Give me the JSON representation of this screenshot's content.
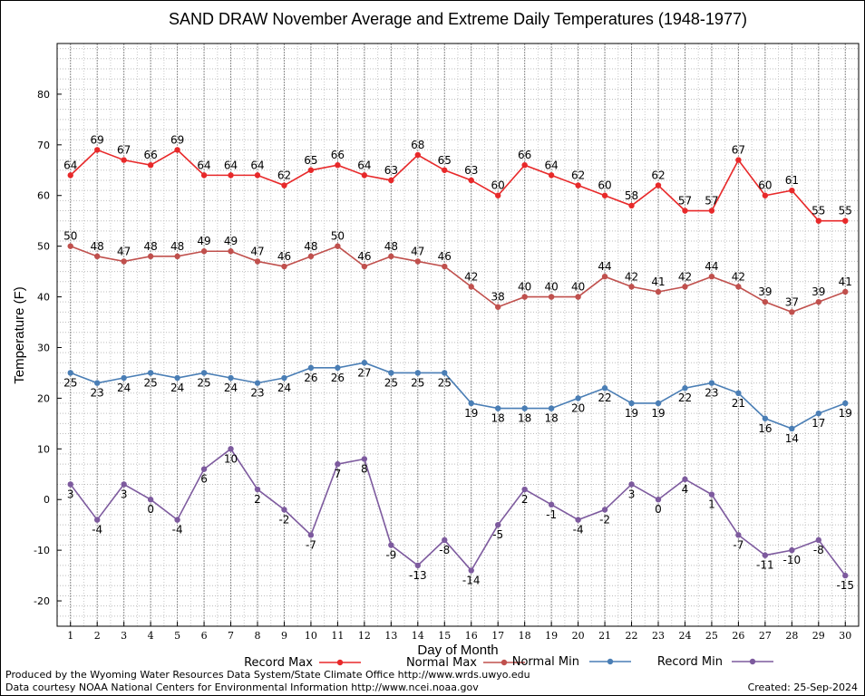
{
  "footer": {
    "produced_by": "Produced by the Wyoming Water Resources Data System/State Climate Office http://www.wrds.uwyo.edu",
    "courtesy": "Data courtesy NOAA National Centers for Environmental Information http://www.ncei.noaa.gov",
    "created": "Created:  25-Sep-2024"
  },
  "chart_data": {
    "type": "line",
    "title": "SAND DRAW November Average and Extreme Daily Temperatures (1948-1977)",
    "xlabel": "Day of Month",
    "ylabel": "Temperature (F)",
    "xlim": [
      0.5,
      30.5
    ],
    "ylim": [
      -25,
      90
    ],
    "yticks": [
      -20,
      -10,
      0,
      10,
      20,
      30,
      40,
      50,
      60,
      70,
      80
    ],
    "x": [
      1,
      2,
      3,
      4,
      5,
      6,
      7,
      8,
      9,
      10,
      11,
      12,
      13,
      14,
      15,
      16,
      17,
      18,
      19,
      20,
      21,
      22,
      23,
      24,
      25,
      26,
      27,
      28,
      29,
      30
    ],
    "grid": true,
    "legend": "bottom",
    "series": [
      {
        "name": "Record Max",
        "color": "#e8292a",
        "label_pos": "above",
        "values": [
          64,
          69,
          67,
          66,
          69,
          64,
          64,
          64,
          62,
          65,
          66,
          64,
          63,
          68,
          65,
          63,
          60,
          66,
          64,
          62,
          60,
          58,
          62,
          57,
          57,
          67,
          60,
          61,
          55,
          55
        ]
      },
      {
        "name": "Normal Max",
        "color": "#c0504d",
        "label_pos": "above",
        "values": [
          50,
          48,
          47,
          48,
          48,
          49,
          49,
          47,
          46,
          48,
          50,
          46,
          48,
          47,
          46,
          42,
          38,
          40,
          40,
          40,
          44,
          42,
          41,
          42,
          44,
          42,
          39,
          37,
          39,
          41
        ]
      },
      {
        "name": "Normal Min",
        "color": "#4a7eb5",
        "label_pos": "below",
        "values": [
          25,
          23,
          24,
          25,
          24,
          25,
          24,
          23,
          24,
          26,
          26,
          27,
          25,
          25,
          25,
          19,
          18,
          18,
          18,
          20,
          22,
          19,
          19,
          22,
          23,
          21,
          16,
          14,
          17,
          19
        ]
      },
      {
        "name": "Record Min",
        "color": "#7d5a9e",
        "label_pos": "below",
        "values": [
          3,
          -4,
          3,
          0,
          -4,
          6,
          10,
          2,
          -2,
          -7,
          7,
          8,
          -9,
          -13,
          -8,
          -14,
          -5,
          2,
          -1,
          -4,
          -2,
          3,
          0,
          4,
          1,
          -7,
          -11,
          -10,
          -8,
          -15
        ]
      }
    ]
  }
}
